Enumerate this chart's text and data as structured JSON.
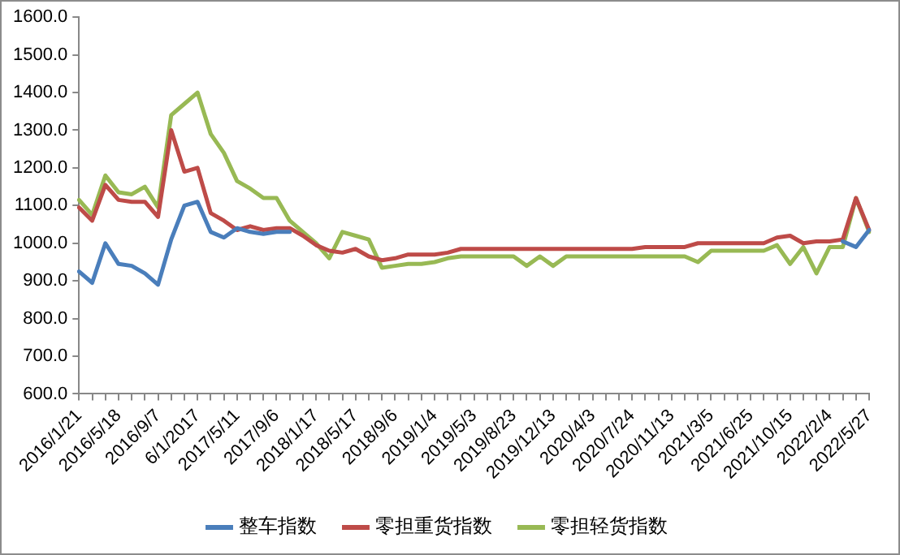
{
  "chart_data": {
    "type": "line",
    "categories": [
      "2016/1/21",
      null,
      null,
      "2016/5/18",
      null,
      null,
      "2016/9/7",
      null,
      null,
      "6/1/2017",
      null,
      null,
      "2017/5/11",
      null,
      null,
      "2017/9/6",
      null,
      null,
      "2018/1/17",
      null,
      null,
      "2018/5/17",
      null,
      null,
      "2018/9/6",
      null,
      null,
      "2019/1/4",
      null,
      null,
      "2019/5/3",
      null,
      null,
      "2019/8/23",
      null,
      null,
      "2019/12/13",
      null,
      null,
      "2020/4/3",
      null,
      null,
      "2020/7/24",
      null,
      null,
      "2020/11/13",
      null,
      null,
      "2021/3/5",
      null,
      null,
      "2021/6/25",
      null,
      null,
      "2021/10/15",
      null,
      null,
      "2022/2/4",
      null,
      null,
      "2022/5/27"
    ],
    "series": [
      {
        "name": "整车指数",
        "color": "#4a7ebb",
        "values": [
          925,
          895,
          1000,
          945,
          940,
          920,
          890,
          1010,
          1100,
          1110,
          1030,
          1015,
          1040,
          1030,
          1025,
          1030,
          1030,
          null,
          null,
          null,
          null,
          null,
          null,
          null,
          null,
          null,
          null,
          null,
          null,
          null,
          null,
          null,
          null,
          null,
          null,
          null,
          null,
          null,
          null,
          null,
          null,
          null,
          null,
          null,
          null,
          null,
          null,
          null,
          null,
          null,
          null,
          null,
          null,
          null,
          null,
          null,
          null,
          null,
          1005,
          990,
          1035
        ]
      },
      {
        "name": "零担重货指数",
        "color": "#be4b48",
        "values": [
          1095,
          1060,
          1155,
          1115,
          1110,
          1110,
          1070,
          1300,
          1190,
          1200,
          1080,
          1060,
          1035,
          1045,
          1035,
          1040,
          1040,
          1020,
          995,
          980,
          975,
          985,
          965,
          955,
          960,
          970,
          970,
          970,
          975,
          985,
          985,
          985,
          985,
          985,
          985,
          985,
          985,
          985,
          985,
          985,
          985,
          985,
          985,
          990,
          990,
          990,
          990,
          1000,
          1000,
          1000,
          1000,
          1000,
          1000,
          1015,
          1020,
          1000,
          1005,
          1005,
          1010,
          1120,
          1035
        ]
      },
      {
        "name": "零担轻货指数",
        "color": "#98b954",
        "values": [
          1115,
          1075,
          1180,
          1135,
          1130,
          1150,
          1095,
          1340,
          1370,
          1400,
          1290,
          1240,
          1165,
          1145,
          1120,
          1120,
          1060,
          1030,
          1000,
          960,
          1030,
          1020,
          1010,
          935,
          940,
          945,
          945,
          950,
          960,
          965,
          965,
          965,
          965,
          965,
          940,
          965,
          940,
          965,
          965,
          965,
          965,
          965,
          965,
          965,
          965,
          965,
          965,
          950,
          980,
          980,
          980,
          980,
          980,
          995,
          945,
          990,
          920,
          990,
          990,
          1120,
          1030
        ]
      }
    ],
    "ylim": [
      600,
      1600
    ],
    "yticks": [
      {
        "value": 600,
        "label": "600.0"
      },
      {
        "value": 700,
        "label": "700.0"
      },
      {
        "value": 800,
        "label": "800.0"
      },
      {
        "value": 900,
        "label": "900.0"
      },
      {
        "value": 1000,
        "label": "1000.0"
      },
      {
        "value": 1100,
        "label": "1100.0"
      },
      {
        "value": 1200,
        "label": "1200.0"
      },
      {
        "value": 1300,
        "label": "1300.0"
      },
      {
        "value": 1400,
        "label": "1400.0"
      },
      {
        "value": 1500,
        "label": "1500.0"
      },
      {
        "value": 1600,
        "label": "1600.0"
      }
    ],
    "grid": false,
    "legend": "bottom",
    "marker": "none",
    "line_style": "solid"
  }
}
